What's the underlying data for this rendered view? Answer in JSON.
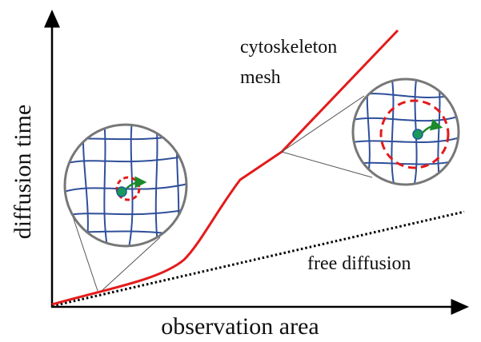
{
  "labels": {
    "curve_top": "cytoskeleton",
    "curve_bottom": "mesh",
    "free": "free diffusion"
  },
  "axes": {
    "y_label": "diffusion time",
    "x_label": "observation area"
  }
}
